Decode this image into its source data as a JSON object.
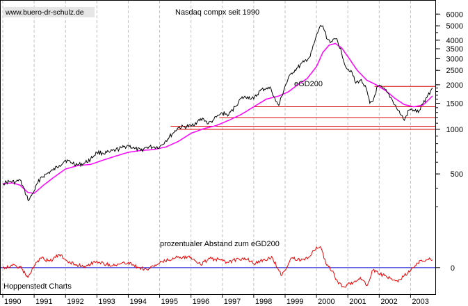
{
  "watermark": "www.buero-dr-schulz.de",
  "source": "Hoppenstedt Charts",
  "colors": {
    "background": "#ffffff",
    "price": "#000000",
    "ema": "#ff00ff",
    "support": "#dd0000",
    "oscillator": "#ee0000",
    "zero_line": "#0000cc",
    "grid": "#c0c0c0",
    "badge": "#e6e6e6"
  },
  "chart_data": [
    {
      "type": "line",
      "title": "Nasdaq compx seit 1990",
      "scale": "log",
      "ylim": [
        240,
        7000
      ],
      "y_ticks": [
        500,
        1000,
        1500,
        2000,
        2500,
        3000,
        3500,
        4000,
        5000,
        6000
      ],
      "x_ticks": [
        "1990",
        "1991",
        "1992",
        "1993",
        "1994",
        "1995",
        "1996",
        "1997",
        "1998",
        "1999",
        "2000",
        "2001",
        "2002",
        "2003"
      ],
      "x_range": [
        1990.0,
        2003.7
      ],
      "grid": "vertical dashed",
      "series": [
        {
          "name": "",
          "role": "price",
          "x": [
            1990.0,
            1990.2,
            1990.4,
            1990.55,
            1990.75,
            1990.83,
            1991.0,
            1991.2,
            1991.4,
            1991.6,
            1991.8,
            1992.0,
            1992.2,
            1992.4,
            1992.6,
            1992.8,
            1993.0,
            1993.2,
            1993.4,
            1993.6,
            1993.8,
            1994.0,
            1994.2,
            1994.4,
            1994.6,
            1994.8,
            1995.0,
            1995.2,
            1995.4,
            1995.6,
            1995.8,
            1996.0,
            1996.2,
            1996.4,
            1996.55,
            1996.7,
            1996.9,
            1997.0,
            1997.2,
            1997.4,
            1997.6,
            1997.8,
            1998.0,
            1998.2,
            1998.4,
            1998.55,
            1998.7,
            1998.8,
            1999.0,
            1999.2,
            1999.4,
            1999.6,
            1999.8,
            1999.95,
            2000.1,
            2000.2,
            2000.35,
            2000.5,
            2000.65,
            2000.8,
            2000.95,
            2001.1,
            2001.25,
            2001.4,
            2001.55,
            2001.7,
            2001.8,
            2001.95,
            2002.1,
            2002.25,
            2002.4,
            2002.55,
            2002.7,
            2002.8,
            2002.95,
            2003.1,
            2003.25,
            2003.4,
            2003.55,
            2003.7
          ],
          "y": [
            430,
            445,
            440,
            455,
            360,
            330,
            385,
            470,
            500,
            530,
            570,
            620,
            595,
            575,
            590,
            630,
            700,
            690,
            700,
            725,
            750,
            780,
            740,
            720,
            760,
            760,
            760,
            840,
            930,
            1030,
            1040,
            1050,
            1130,
            1180,
            1090,
            1150,
            1250,
            1290,
            1250,
            1420,
            1620,
            1660,
            1600,
            1820,
            1900,
            1880,
            1550,
            1450,
            1960,
            2400,
            2600,
            2850,
            3100,
            3950,
            4900,
            5000,
            4050,
            3900,
            4100,
            3300,
            2600,
            2500,
            2050,
            2150,
            1980,
            1500,
            1550,
            1950,
            1900,
            1780,
            1600,
            1400,
            1250,
            1150,
            1350,
            1350,
            1300,
            1500,
            1700,
            1900
          ]
        },
        {
          "name": "eGD200",
          "role": "ema",
          "x": [
            1990.0,
            1990.3,
            1990.55,
            1990.8,
            1991.0,
            1991.3,
            1991.6,
            1992.0,
            1992.4,
            1992.8,
            1993.2,
            1993.6,
            1994.0,
            1994.4,
            1994.8,
            1995.2,
            1995.6,
            1996.0,
            1996.4,
            1996.8,
            1997.2,
            1997.6,
            1998.0,
            1998.4,
            1998.8,
            1999.1,
            1999.4,
            1999.7,
            2000.0,
            2000.2,
            2000.4,
            2000.6,
            2000.8,
            2001.0,
            2001.3,
            2001.6,
            2001.9,
            2002.2,
            2002.5,
            2002.8,
            2003.1,
            2003.4,
            2003.7
          ],
          "y": [
            430,
            435,
            420,
            375,
            370,
            420,
            470,
            540,
            570,
            580,
            620,
            660,
            700,
            720,
            730,
            760,
            830,
            940,
            1010,
            1060,
            1150,
            1260,
            1420,
            1600,
            1680,
            1790,
            2000,
            2200,
            2650,
            3300,
            3700,
            3800,
            3550,
            3100,
            2500,
            2150,
            2000,
            1830,
            1620,
            1470,
            1420,
            1460,
            1680
          ]
        }
      ],
      "support_lines": [
        {
          "y": 1950,
          "x_start": 2001.85
        },
        {
          "y": 1420,
          "x_start": 1998.0
        },
        {
          "y": 1200,
          "x_start": 1996.9
        },
        {
          "y": 1050,
          "x_start": 1995.35
        },
        {
          "y": 1000,
          "x_start": 1995.55
        }
      ]
    },
    {
      "type": "line",
      "title": "prozentualer Abstand zum eGD200",
      "ylim": [
        -40,
        45
      ],
      "y_ticks": [
        0
      ],
      "series": [
        {
          "name": "",
          "role": "oscillator",
          "x": [
            1990.0,
            1990.3,
            1990.55,
            1990.8,
            1991.0,
            1991.2,
            1991.5,
            1991.8,
            1992.0,
            1992.3,
            1992.6,
            1993.0,
            1993.3,
            1993.6,
            1994.0,
            1994.3,
            1994.6,
            1995.0,
            1995.3,
            1995.6,
            1996.0,
            1996.3,
            1996.6,
            1996.9,
            1997.2,
            1997.5,
            1997.8,
            1998.0,
            1998.3,
            1998.6,
            1998.75,
            1998.9,
            1999.2,
            1999.5,
            1999.8,
            2000.0,
            2000.15,
            2000.3,
            2000.5,
            2000.7,
            2000.9,
            2001.0,
            2001.2,
            2001.4,
            2001.6,
            2001.8,
            2002.0,
            2002.2,
            2002.4,
            2002.6,
            2002.8,
            2003.0,
            2003.2,
            2003.4,
            2003.6,
            2003.7
          ],
          "y": [
            0,
            3,
            1,
            -15,
            2,
            15,
            10,
            20,
            12,
            5,
            2,
            10,
            5,
            4,
            8,
            1,
            -3,
            7,
            12,
            17,
            16,
            5,
            14,
            12,
            8,
            14,
            13,
            6,
            12,
            15,
            0,
            -12,
            15,
            11,
            18,
            32,
            30,
            6,
            -5,
            -25,
            -30,
            -25,
            -22,
            -15,
            -28,
            -4,
            -10,
            -12,
            -18,
            -22,
            -12,
            -5,
            7,
            10,
            15,
            12
          ]
        }
      ]
    }
  ]
}
